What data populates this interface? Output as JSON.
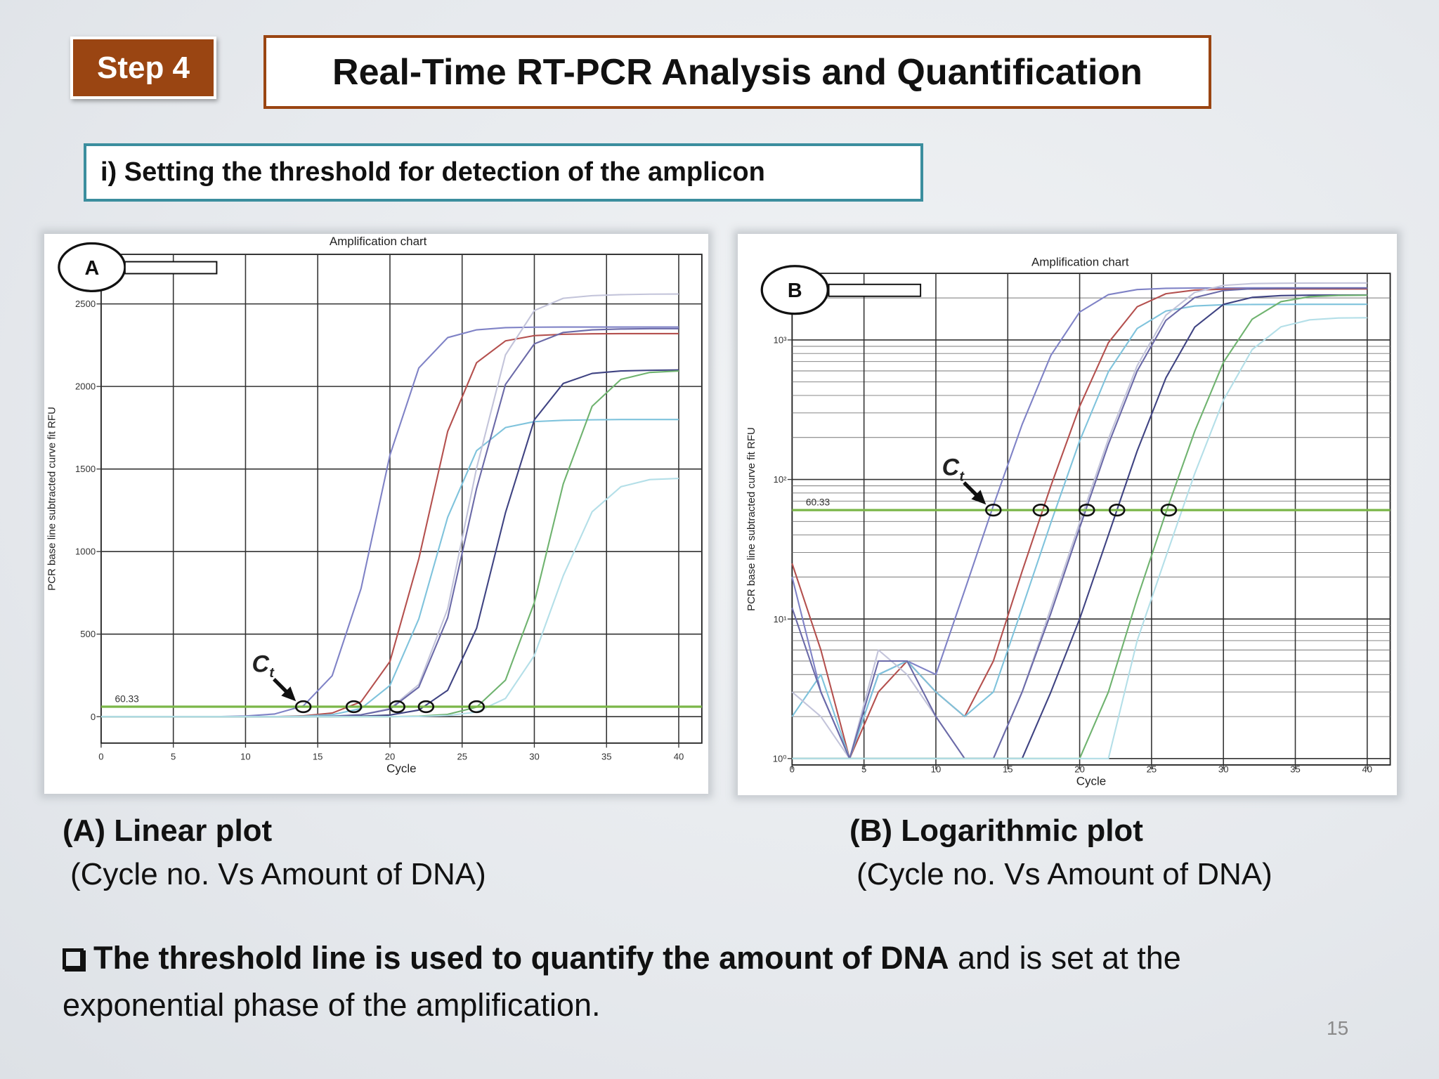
{
  "header": {
    "step": "Step 4",
    "title": "Real-Time RT-PCR Analysis and Quantification"
  },
  "section": "i) Setting the threshold for detection of the amplicon",
  "chart_data": [
    {
      "type": "line",
      "badge": "A",
      "title": "Amplification chart",
      "y_label": "PCR base line subtracted curve fit RFU",
      "x_label": "Cycle",
      "x": [
        0,
        2,
        4,
        6,
        8,
        10,
        12,
        14,
        16,
        18,
        20,
        22,
        24,
        26,
        28,
        30,
        32,
        34,
        36,
        38,
        40
      ],
      "xlim": [
        0,
        41.6
      ],
      "xticks": [
        0,
        5,
        10,
        15,
        20,
        25,
        30,
        35,
        40
      ],
      "ylim": [
        -160,
        2800
      ],
      "yticks": [
        0,
        500,
        1000,
        1500,
        2000,
        2500
      ],
      "grid": true,
      "log_y": false,
      "threshold": 60.33,
      "ct_cycles": [
        14,
        17.5,
        20.5,
        22.5,
        26
      ],
      "ct_label": {
        "text": "C",
        "subscript": "t"
      },
      "series": [
        {
          "color": "#7f82c6",
          "values": [
            0,
            0,
            0,
            0,
            0,
            4,
            16,
            65,
            248,
            776,
            1584,
            2112,
            2296,
            2343,
            2356,
            2359,
            2360,
            2360,
            2360,
            2360,
            2360
          ]
        },
        {
          "color": "#b4504e",
          "values": [
            0,
            0,
            0,
            0,
            0,
            0,
            0,
            5,
            22,
            90,
            334,
            956,
            1728,
            2144,
            2276,
            2308,
            2316,
            2319,
            2320,
            2320,
            2320
          ]
        },
        {
          "color": "#7fc3dc",
          "values": [
            0,
            0,
            0,
            0,
            0,
            0,
            0,
            3,
            12,
            49,
            189,
            592,
            1208,
            1611,
            1751,
            1787,
            1795,
            1798,
            1800,
            1800,
            1800
          ]
        },
        {
          "color": "#c3c4da",
          "values": [
            0,
            0,
            0,
            0,
            0,
            0,
            0,
            0,
            3,
            12,
            49,
            195,
            653,
            1505,
            2191,
            2460,
            2534,
            2550,
            2556,
            2559,
            2560
          ]
        },
        {
          "color": "#6b6aa8",
          "values": [
            0,
            0,
            0,
            0,
            0,
            0,
            0,
            0,
            3,
            11,
            45,
            179,
            599,
            1382,
            2012,
            2258,
            2327,
            2343,
            2348,
            2350,
            2350
          ]
        },
        {
          "color": "#3f4382",
          "values": [
            0,
            0,
            0,
            0,
            0,
            0,
            0,
            0,
            0,
            3,
            10,
            40,
            160,
            535,
            1235,
            1798,
            2018,
            2079,
            2094,
            2098,
            2100
          ]
        },
        {
          "color": "#6fb36f",
          "values": [
            0,
            0,
            0,
            0,
            0,
            0,
            0,
            0,
            0,
            0,
            0,
            3,
            14,
            58,
            221,
            691,
            1409,
            1880,
            2043,
            2085,
            2094
          ]
        },
        {
          "color": "#b4dfe8",
          "values": [
            0,
            0,
            0,
            0,
            0,
            0,
            0,
            0,
            0,
            0,
            0,
            1,
            7,
            28,
            110,
            370,
            853,
            1241,
            1393,
            1436,
            1443
          ]
        }
      ]
    },
    {
      "type": "line",
      "badge": "B",
      "title": "Amplification chart",
      "y_label": "PCR base line subtracted curve fit RFU",
      "x_label": "Cycle",
      "x": [
        0,
        2,
        4,
        6,
        8,
        10,
        12,
        14,
        16,
        18,
        20,
        22,
        24,
        26,
        28,
        30,
        32,
        34,
        36,
        38,
        40
      ],
      "xlim": [
        0,
        41.6
      ],
      "xticks": [
        0,
        5,
        10,
        15,
        20,
        25,
        30,
        35,
        40
      ],
      "ylim": [
        0.9,
        3000
      ],
      "yticks": [
        {
          "value": 1,
          "label": "10⁰"
        },
        {
          "value": 10,
          "label": "10¹"
        },
        {
          "value": 100,
          "label": "10²"
        },
        {
          "value": 1000,
          "label": "10³"
        }
      ],
      "grid": true,
      "log_y": true,
      "minor_grid": true,
      "threshold": 60.33,
      "ct_cycles": [
        14,
        17.3,
        20.5,
        22.6,
        26.2
      ],
      "ct_label": {
        "text": "C",
        "subscript": "t"
      },
      "series": [
        {
          "color": "#7f82c6",
          "values": [
            20,
            3,
            1,
            4,
            5,
            4,
            16,
            65,
            248,
            776,
            1584,
            2112,
            2296,
            2343,
            2356,
            2359,
            2360,
            2360,
            2360,
            2360,
            2360
          ]
        },
        {
          "color": "#b4504e",
          "values": [
            25,
            6,
            1,
            3,
            5,
            3,
            2,
            5,
            22,
            90,
            334,
            956,
            1728,
            2144,
            2276,
            2308,
            2316,
            2319,
            2320,
            2320,
            2320
          ]
        },
        {
          "color": "#7fc3dc",
          "values": [
            2,
            4,
            1,
            4,
            5,
            3,
            2,
            3,
            12,
            49,
            189,
            592,
            1208,
            1611,
            1751,
            1787,
            1795,
            1798,
            1800,
            1800,
            1800
          ]
        },
        {
          "color": "#c3c4da",
          "values": [
            3,
            2,
            1,
            6,
            4,
            2,
            1,
            1,
            3,
            12,
            49,
            195,
            653,
            1505,
            2191,
            2460,
            2534,
            2550,
            2556,
            2559,
            2560
          ]
        },
        {
          "color": "#6b6aa8",
          "values": [
            12,
            3,
            1,
            5,
            5,
            2,
            1,
            1,
            3,
            11,
            45,
            179,
            599,
            1382,
            2012,
            2258,
            2327,
            2343,
            2348,
            2350,
            2350
          ]
        },
        {
          "color": "#3f4382",
          "values": [
            1,
            1,
            1,
            1,
            1,
            1,
            1,
            1,
            1,
            3,
            10,
            40,
            160,
            535,
            1235,
            1798,
            2018,
            2079,
            2094,
            2098,
            2100
          ]
        },
        {
          "color": "#6fb36f",
          "values": [
            1,
            1,
            1,
            1,
            1,
            1,
            1,
            1,
            1,
            1,
            1,
            3,
            14,
            58,
            221,
            691,
            1409,
            1880,
            2043,
            2085,
            2094
          ]
        },
        {
          "color": "#b4dfe8",
          "values": [
            1,
            1,
            1,
            1,
            1,
            1,
            1,
            1,
            1,
            1,
            1,
            1,
            7,
            28,
            110,
            370,
            853,
            1241,
            1393,
            1436,
            1443
          ]
        }
      ]
    }
  ],
  "captions": [
    {
      "title": "(A) Linear plot",
      "subtitle": "(Cycle no. Vs Amount of DNA)"
    },
    {
      "title": "(B) Logarithmic plot",
      "subtitle": "(Cycle no. Vs Amount of DNA)"
    }
  ],
  "note": {
    "bold": "The threshold line is used to quantify the amount of DNA",
    "text": "and is set at the exponential phase of the amplification."
  },
  "page_number": 15
}
